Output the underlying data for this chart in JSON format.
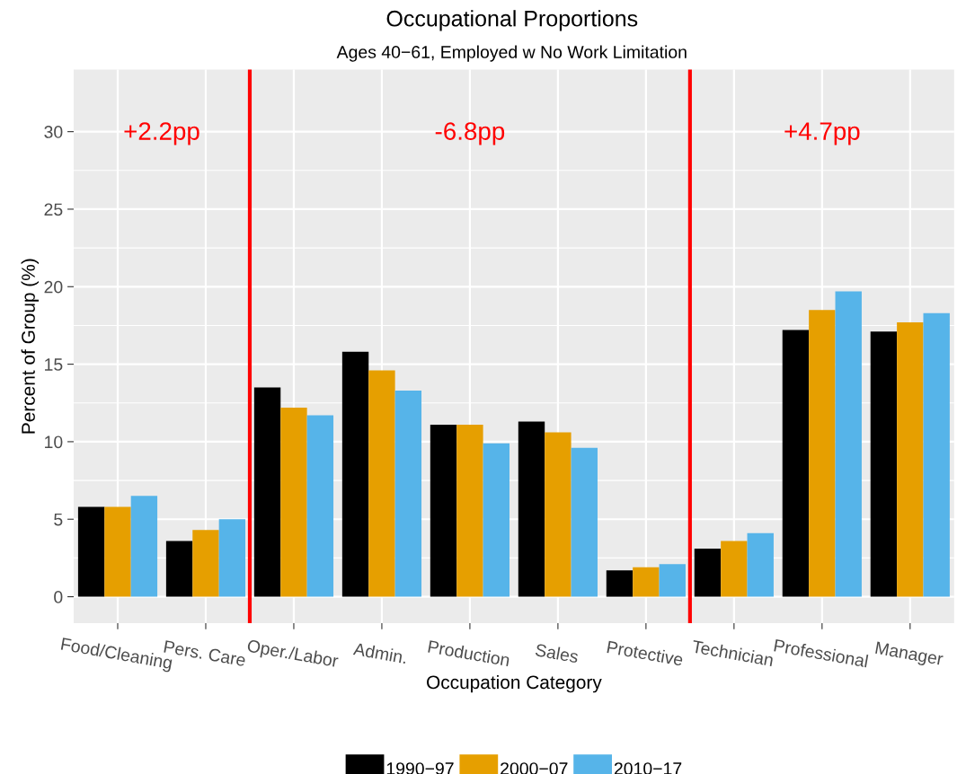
{
  "chart_data": {
    "type": "bar",
    "title": "Occupational Proportions",
    "subtitle": "Ages 40−61, Employed w No Work Limitation",
    "xlabel": "Occupation Category",
    "ylabel": "Percent of Group (%)",
    "categories": [
      "Food/Cleaning",
      "Pers. Care",
      "Oper./Labor",
      "Admin.",
      "Production",
      "Sales",
      "Protective",
      "Technician",
      "Professional",
      "Manager"
    ],
    "series": [
      {
        "name": "1990−97",
        "color": "#000000",
        "values": [
          5.8,
          3.6,
          13.5,
          15.8,
          11.1,
          11.3,
          1.7,
          3.1,
          17.2,
          17.1
        ]
      },
      {
        "name": "2000−07",
        "color": "#e69f00",
        "values": [
          5.8,
          4.3,
          12.2,
          14.6,
          11.1,
          10.6,
          1.9,
          3.6,
          18.5,
          17.7
        ]
      },
      {
        "name": "2010−17",
        "color": "#56b4e9",
        "values": [
          6.5,
          5.0,
          11.7,
          13.3,
          9.9,
          9.6,
          2.1,
          4.1,
          19.7,
          18.3
        ]
      }
    ],
    "ylim": [
      -1.7,
      34
    ],
    "yticks": [
      0,
      5,
      10,
      15,
      20,
      25,
      30
    ],
    "annotations": [
      "+2.2pp",
      "-6.8pp",
      "+4.7pp"
    ],
    "grid": true,
    "legend": "bottom"
  }
}
